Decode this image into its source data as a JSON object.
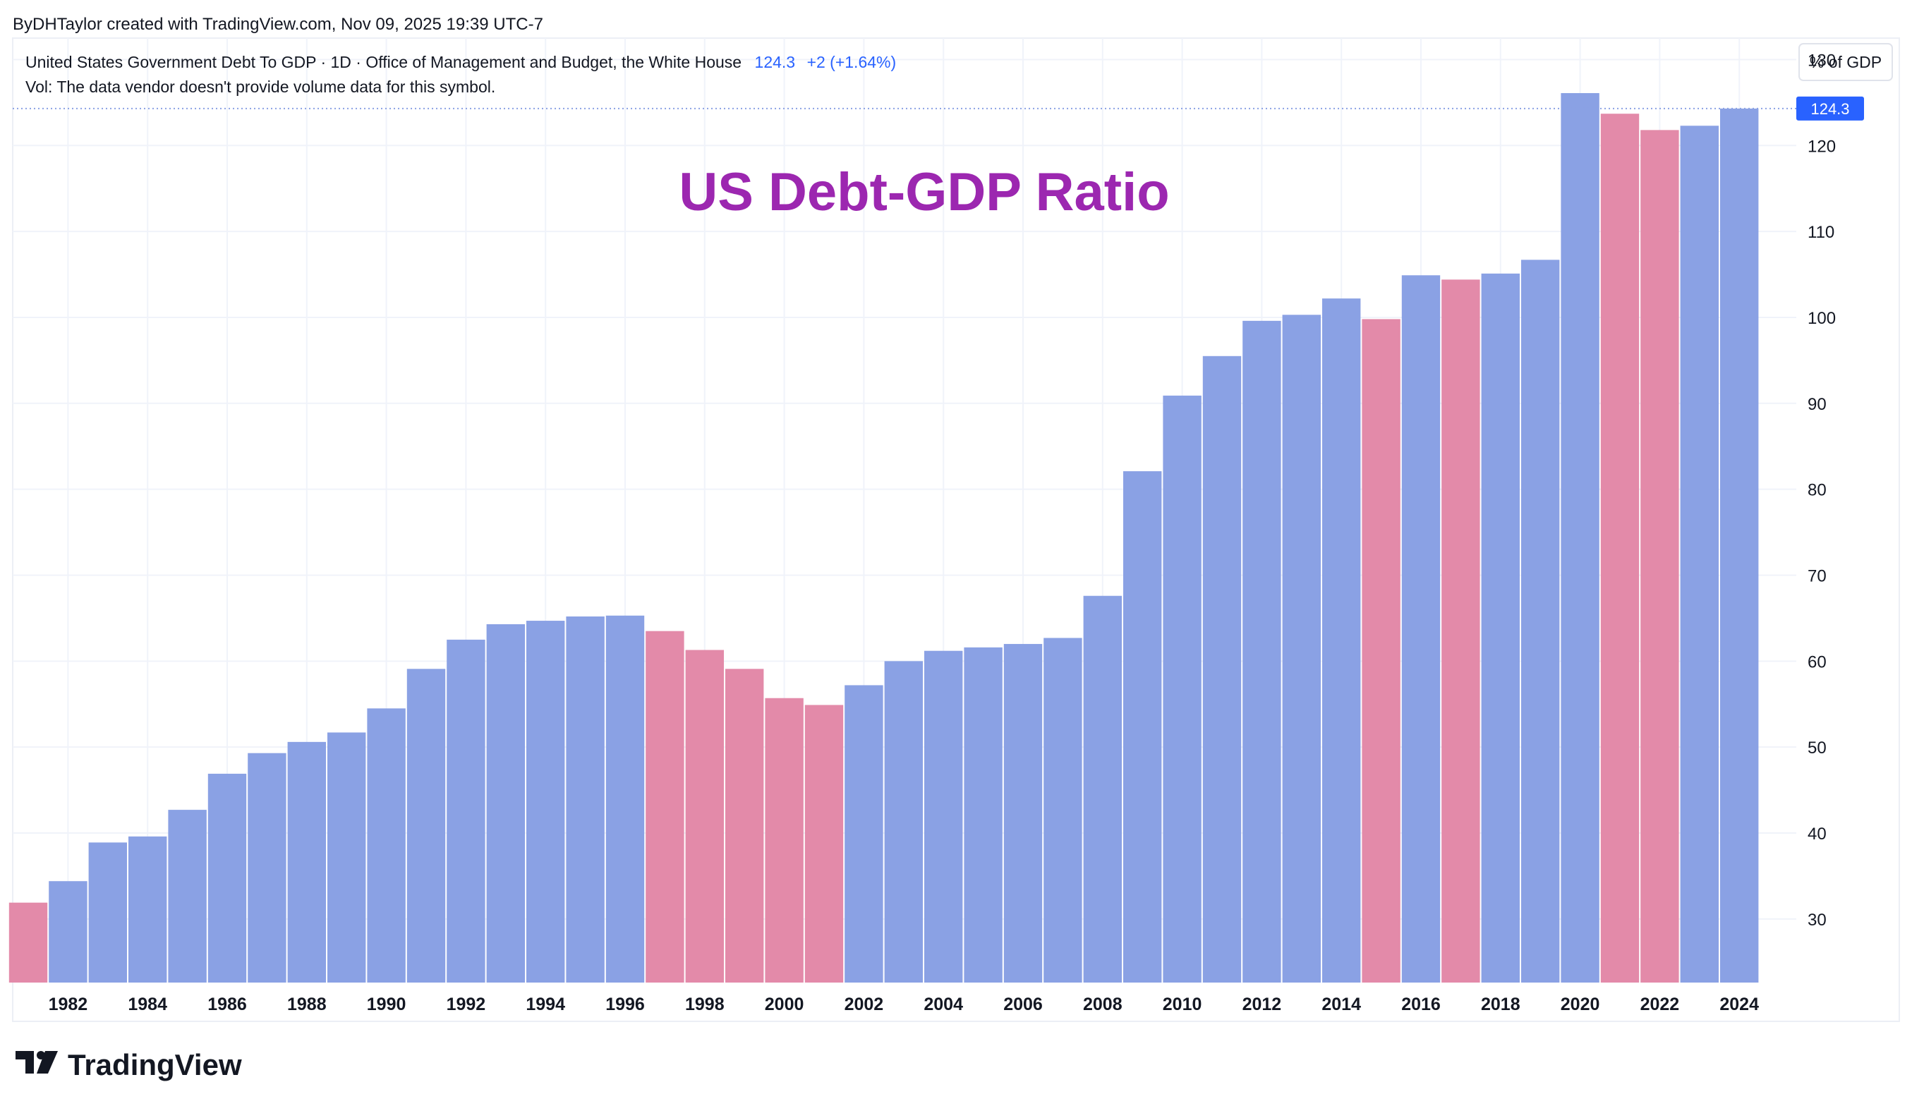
{
  "byline": "ByDHTaylor created with TradingView.com, Nov 09, 2025 19:39 UTC-7",
  "legend": {
    "symbol": "United States Government Debt To GDP · 1D · Office of Management and Budget, the White House",
    "last_value": "124.3",
    "change": "+2 (+1.64%)",
    "volume_note": "Vol: The data vendor doesn't provide volume data for this symbol."
  },
  "unit_label": "% of GDP",
  "price_label": "124.3",
  "logo_text": "TradingView",
  "colors": {
    "up": "#8aa1e4",
    "down": "#e38aa9",
    "title": "#9c27b0",
    "price_label_bg": "#2962ff",
    "grid": "#f0f3fa"
  },
  "chart_data": {
    "type": "bar",
    "title": "US Debt-GDP Ratio",
    "xlabel": "",
    "ylabel": "% of GDP",
    "ylim": [
      22.6,
      132.5
    ],
    "y_ticks": [
      30,
      40,
      50,
      60,
      70,
      80,
      90,
      100,
      110,
      120,
      130
    ],
    "x_ticks": [
      "1982",
      "1984",
      "1986",
      "1988",
      "1990",
      "1992",
      "1994",
      "1996",
      "1998",
      "2000",
      "2002",
      "2004",
      "2006",
      "2008",
      "2010",
      "2012",
      "2014",
      "2016",
      "2018",
      "2020",
      "2022",
      "2024"
    ],
    "categories": [
      "1981",
      "1982",
      "1983",
      "1984",
      "1985",
      "1986",
      "1987",
      "1988",
      "1989",
      "1990",
      "1991",
      "1992",
      "1993",
      "1994",
      "1995",
      "1996",
      "1997",
      "1998",
      "1999",
      "2000",
      "2001",
      "2002",
      "2003",
      "2004",
      "2005",
      "2006",
      "2007",
      "2008",
      "2009",
      "2010",
      "2011",
      "2012",
      "2013",
      "2014",
      "2015",
      "2016",
      "2017",
      "2018",
      "2019",
      "2020",
      "2021",
      "2022",
      "2023",
      "2024"
    ],
    "values": [
      31.9,
      34.4,
      38.9,
      39.6,
      42.7,
      46.9,
      49.3,
      50.6,
      51.7,
      54.5,
      59.1,
      62.5,
      64.3,
      64.7,
      65.2,
      65.3,
      63.5,
      61.3,
      59.1,
      55.7,
      54.9,
      57.2,
      60.0,
      61.2,
      61.6,
      62.0,
      62.7,
      67.6,
      82.1,
      90.9,
      95.5,
      99.6,
      100.3,
      102.2,
      99.8,
      104.9,
      104.4,
      105.1,
      106.7,
      126.1,
      123.7,
      121.8,
      122.3,
      124.3
    ],
    "directions": [
      "down",
      "up",
      "up",
      "up",
      "up",
      "up",
      "up",
      "up",
      "up",
      "up",
      "up",
      "up",
      "up",
      "up",
      "up",
      "up",
      "down",
      "down",
      "down",
      "down",
      "down",
      "up",
      "up",
      "up",
      "up",
      "up",
      "up",
      "up",
      "up",
      "up",
      "up",
      "up",
      "up",
      "up",
      "down",
      "up",
      "down",
      "up",
      "up",
      "up",
      "down",
      "down",
      "up",
      "up"
    ],
    "last_value": 124.3
  }
}
